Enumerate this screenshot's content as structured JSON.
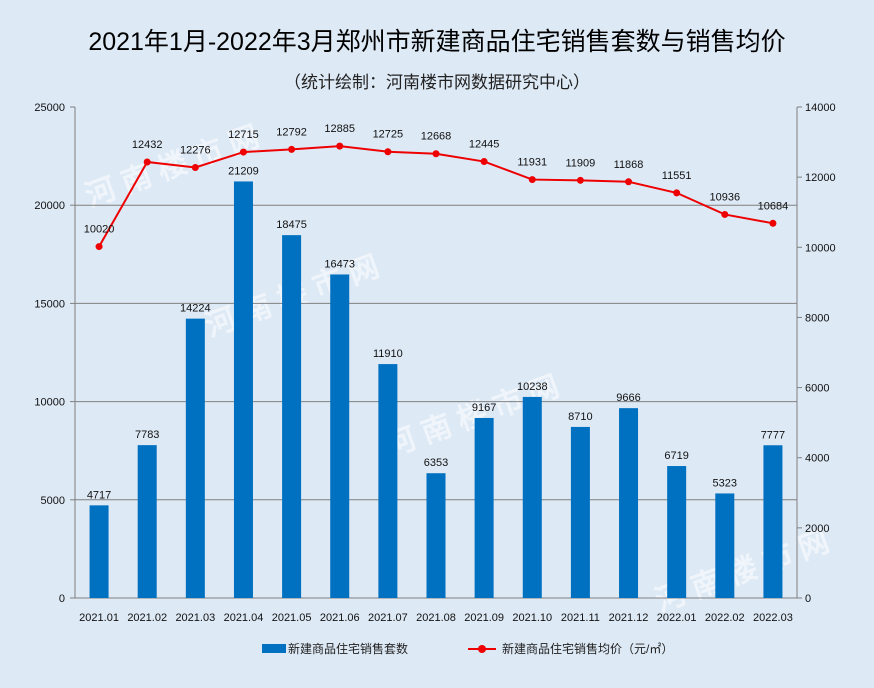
{
  "chart_data": {
    "type": "bar+line",
    "title": "2021年1月-2022年3月郑州市新建商品住宅销售套数与销售均价",
    "subtitle": "（统计绘制：河南楼市网数据研究中心）",
    "categories": [
      "2021.01",
      "2021.02",
      "2021.03",
      "2021.04",
      "2021.05",
      "2021.06",
      "2021.07",
      "2021.08",
      "2021.09",
      "2021.10",
      "2021.11",
      "2021.12",
      "2022.01",
      "2022.02",
      "2022.03"
    ],
    "series": [
      {
        "name": "新建商品住宅销售套数",
        "type": "bar",
        "axis": "left",
        "color": "#0070c0",
        "values": [
          4717,
          7783,
          14224,
          21209,
          18475,
          16473,
          11910,
          6353,
          9167,
          10238,
          8710,
          9666,
          6719,
          5323,
          7777
        ]
      },
      {
        "name": "新建商品住宅销售均价（元/㎡）",
        "type": "line",
        "axis": "right",
        "color": "#ee0000",
        "values": [
          10020,
          12432,
          12276,
          12715,
          12792,
          12885,
          12725,
          12668,
          12445,
          11931,
          11909,
          11868,
          11551,
          10936,
          10684
        ]
      }
    ],
    "y_left": {
      "ylim": [
        0,
        25000
      ],
      "ticks": [
        0,
        5000,
        10000,
        15000,
        20000,
        25000
      ]
    },
    "y_right": {
      "ylim": [
        0,
        14000
      ],
      "ticks": [
        0,
        2000,
        4000,
        6000,
        8000,
        10000,
        12000,
        14000
      ]
    },
    "legend_position": "bottom",
    "watermark": "河南楼市网"
  }
}
